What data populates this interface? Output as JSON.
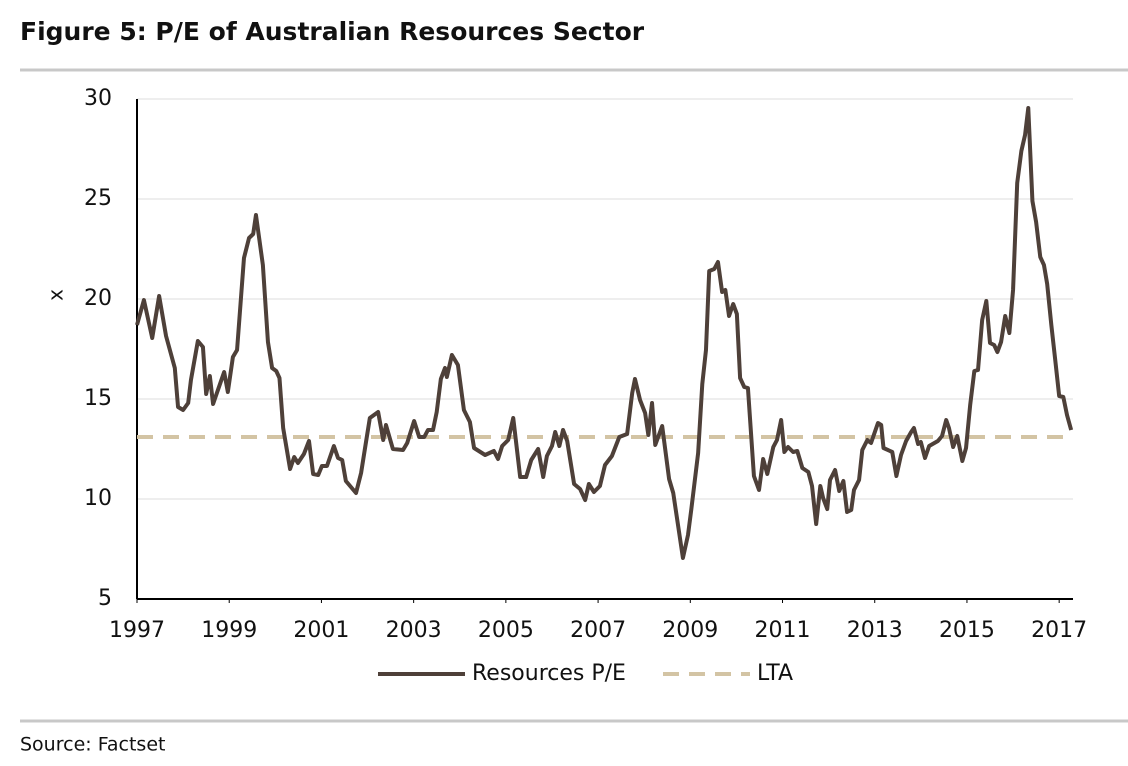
{
  "chart_data": {
    "type": "line",
    "title": "Figure 5: P/E of Australian Resources Sector",
    "y_label": "x",
    "source": "Source: Factset",
    "xlim": [
      1997,
      2017.3
    ],
    "xticks": [
      1997,
      1999,
      2001,
      2003,
      2005,
      2007,
      2009,
      2011,
      2013,
      2015,
      2017
    ],
    "ylim": [
      5,
      30
    ],
    "yticks": [
      5,
      10,
      15,
      20,
      25,
      30
    ],
    "grid": true,
    "legend": "bottom",
    "series": [
      {
        "name": "Resources P/E",
        "color": "#4e4039",
        "dash": false,
        "x": [
          1997.0,
          1997.15,
          1997.33,
          1997.48,
          1997.63,
          1997.82,
          1997.89,
          1998.0,
          1998.11,
          1998.17,
          1998.32,
          1998.43,
          1998.5,
          1998.58,
          1998.65,
          1998.89,
          1998.97,
          1999.08,
          1999.17,
          1999.32,
          1999.43,
          1999.52,
          1999.58,
          1999.73,
          1999.84,
          1999.93,
          2000.02,
          2000.09,
          2000.17,
          2000.32,
          2000.41,
          2000.49,
          2000.62,
          2000.73,
          2000.82,
          2000.93,
          2001.01,
          2001.12,
          2001.27,
          2001.36,
          2001.45,
          2001.53,
          2001.64,
          2001.75,
          2001.86,
          2001.97,
          2002.05,
          2002.23,
          2002.34,
          2002.4,
          2002.55,
          2002.77,
          2002.86,
          2003.01,
          2003.12,
          2003.23,
          2003.31,
          2003.42,
          2003.5,
          2003.59,
          2003.68,
          2003.72,
          2003.83,
          2003.96,
          2004.09,
          2004.22,
          2004.31,
          2004.55,
          2004.74,
          2004.83,
          2004.92,
          2005.05,
          2005.16,
          2005.31,
          2005.44,
          2005.55,
          2005.7,
          2005.81,
          2005.89,
          2006.0,
          2006.07,
          2006.16,
          2006.24,
          2006.33,
          2006.48,
          2006.61,
          2006.72,
          2006.8,
          2006.91,
          2007.04,
          2007.15,
          2007.3,
          2007.46,
          2007.63,
          2007.74,
          2007.8,
          2007.91,
          2008.02,
          2008.09,
          2008.17,
          2008.24,
          2008.39,
          2008.54,
          2008.63,
          2008.84,
          2008.95,
          2009.02,
          2009.17,
          2009.26,
          2009.34,
          2009.41,
          2009.52,
          2009.6,
          2009.69,
          2009.76,
          2009.84,
          2009.93,
          2010.01,
          2010.08,
          2010.17,
          2010.25,
          2010.38,
          2010.49,
          2010.58,
          2010.67,
          2010.8,
          2010.88,
          2010.97,
          2011.04,
          2011.12,
          2011.23,
          2011.32,
          2011.43,
          2011.56,
          2011.64,
          2011.73,
          2011.82,
          2011.88,
          2011.97,
          2012.03,
          2012.14,
          2012.23,
          2012.32,
          2012.4,
          2012.49,
          2012.55,
          2012.66,
          2012.73,
          2012.84,
          2012.92,
          2013.07,
          2013.14,
          2013.19,
          2013.38,
          2013.47,
          2013.57,
          2013.68,
          2013.79,
          2013.85,
          2013.94,
          2014.0,
          2014.09,
          2014.18,
          2014.37,
          2014.46,
          2014.55,
          2014.61,
          2014.7,
          2014.79,
          2014.9,
          2014.98,
          2015.07,
          2015.16,
          2015.24,
          2015.33,
          2015.42,
          2015.5,
          2015.59,
          2015.66,
          2015.74,
          2015.83,
          2015.92,
          2016.0,
          2016.09,
          2016.18,
          2016.26,
          2016.33,
          2016.42,
          2016.5,
          2016.59,
          2016.67,
          2016.74,
          2016.83,
          2016.91,
          2017.0,
          2017.09,
          2017.17,
          2017.26
        ],
        "values": [
          18.7,
          19.95,
          18.05,
          20.15,
          18.15,
          16.55,
          14.6,
          14.45,
          14.8,
          15.95,
          17.9,
          17.6,
          15.25,
          16.15,
          14.75,
          16.35,
          15.35,
          17.1,
          17.45,
          22.05,
          23.05,
          23.25,
          24.2,
          21.7,
          17.85,
          16.55,
          16.4,
          16.05,
          13.55,
          11.5,
          12.1,
          11.8,
          12.25,
          12.9,
          11.25,
          11.2,
          11.65,
          11.65,
          12.65,
          12.05,
          11.95,
          10.9,
          10.6,
          10.3,
          11.3,
          12.9,
          14.05,
          14.35,
          12.95,
          13.7,
          12.5,
          12.45,
          12.8,
          13.9,
          13.1,
          13.1,
          13.45,
          13.45,
          14.35,
          16.0,
          16.55,
          16.1,
          17.2,
          16.7,
          14.45,
          13.85,
          12.55,
          12.2,
          12.4,
          12.0,
          12.65,
          12.95,
          14.05,
          11.1,
          11.1,
          11.95,
          12.5,
          11.1,
          12.15,
          12.65,
          13.35,
          12.65,
          13.45,
          12.9,
          10.75,
          10.5,
          9.95,
          10.75,
          10.35,
          10.65,
          11.7,
          12.15,
          13.1,
          13.25,
          15.3,
          16.0,
          14.95,
          14.3,
          13.2,
          14.8,
          12.7,
          13.65,
          11.0,
          10.3,
          7.05,
          8.2,
          9.45,
          12.3,
          15.75,
          17.45,
          21.4,
          21.5,
          21.85,
          20.35,
          20.45,
          19.15,
          19.75,
          19.25,
          16.05,
          15.6,
          15.55,
          11.15,
          10.45,
          12.0,
          11.25,
          12.6,
          12.95,
          13.95,
          12.35,
          12.6,
          12.35,
          12.4,
          11.55,
          11.35,
          10.65,
          8.75,
          10.65,
          10.05,
          9.5,
          10.95,
          11.45,
          10.4,
          10.9,
          9.35,
          9.45,
          10.45,
          10.95,
          12.45,
          12.95,
          12.8,
          13.8,
          13.7,
          12.55,
          12.35,
          11.15,
          12.2,
          12.9,
          13.35,
          13.55,
          12.75,
          12.85,
          12.05,
          12.65,
          12.9,
          13.15,
          13.95,
          13.55,
          12.6,
          13.15,
          11.9,
          12.55,
          14.7,
          16.4,
          16.45,
          18.95,
          19.9,
          17.8,
          17.7,
          17.35,
          17.85,
          19.15,
          18.3,
          20.45,
          25.8,
          27.4,
          28.2,
          29.55,
          24.9,
          23.85,
          22.1,
          21.7,
          20.75,
          18.7,
          17.05,
          15.15,
          15.1,
          14.2,
          13.45
        ]
      },
      {
        "name": "LTA",
        "color": "#d3c4a4",
        "dash": true,
        "x": [
          1997,
          2017.3
        ],
        "values": [
          13.1,
          13.1
        ]
      }
    ]
  }
}
